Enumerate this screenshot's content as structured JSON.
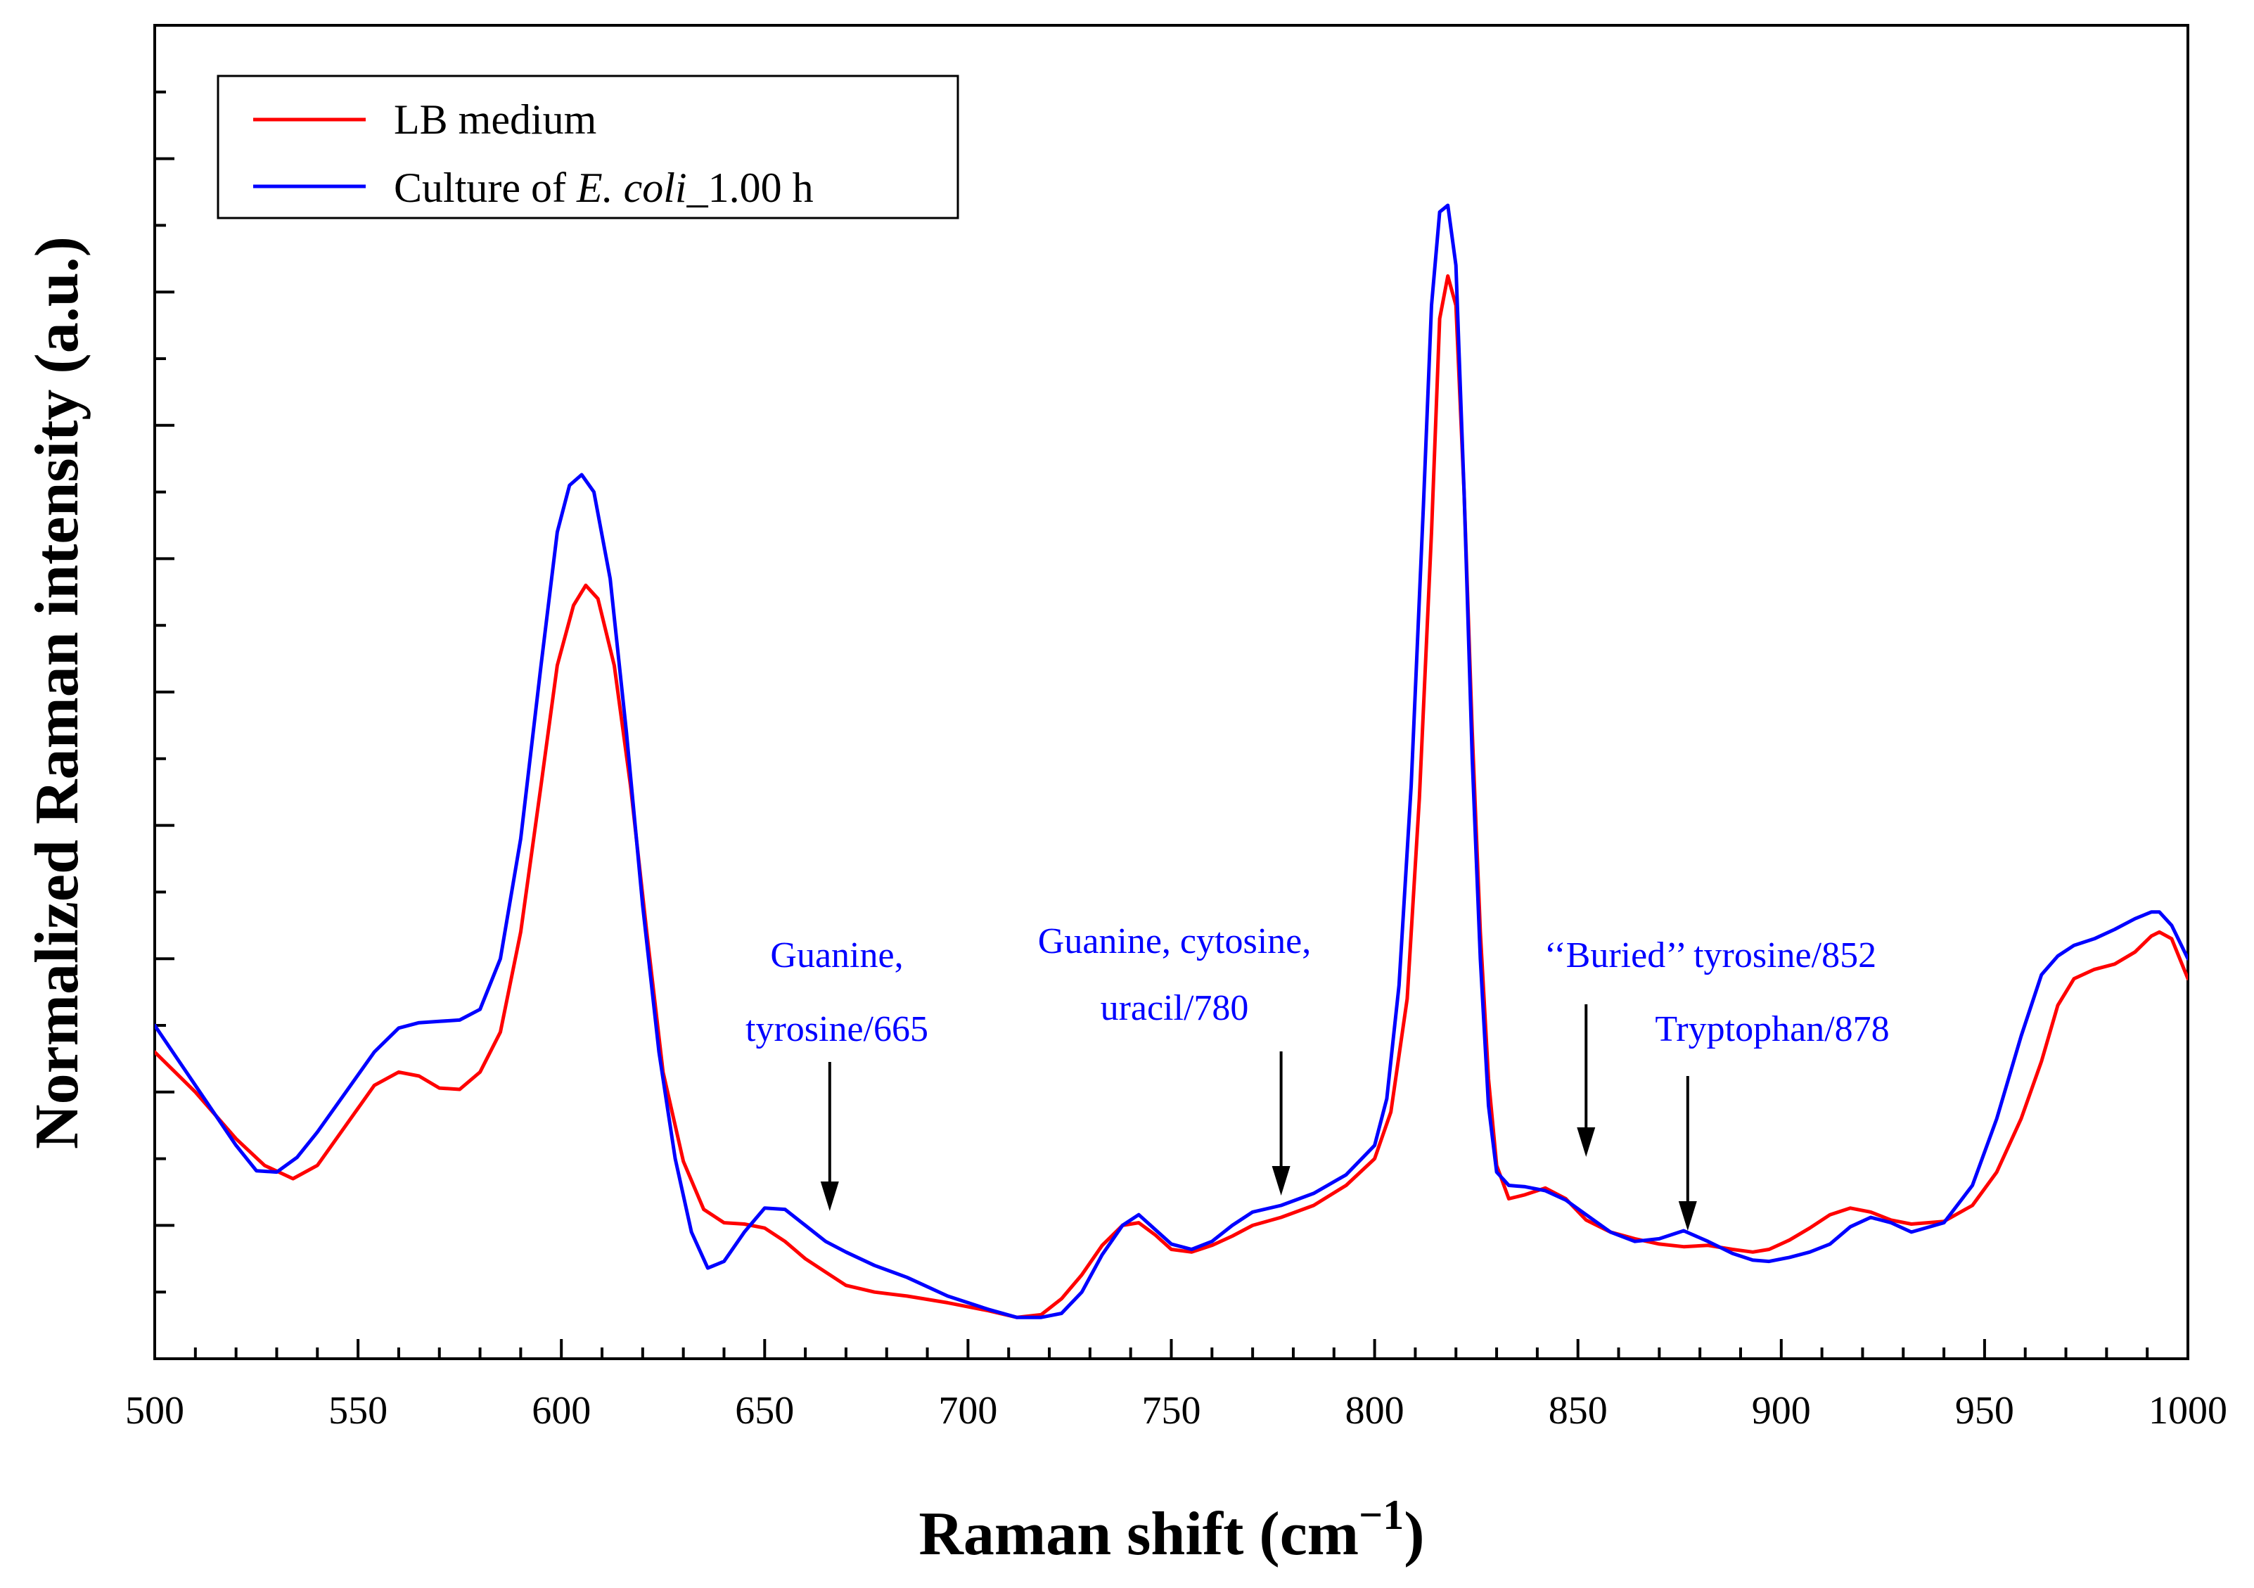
{
  "chart_data": {
    "type": "line",
    "xlabel": "Raman shift (cm",
    "xlabel_sup": "−1",
    "xlabel_tail": ")",
    "ylabel": "Normalized Raman intensity (a.u.)",
    "xlim": [
      500,
      1000
    ],
    "ylim": [
      0,
      1000
    ],
    "xticks": [
      500,
      550,
      600,
      650,
      700,
      750,
      800,
      850,
      900,
      950,
      1000
    ],
    "yticks_labeled": false,
    "legend_position": "top-left",
    "colors": {
      "lb": "#ff0000",
      "culture": "#0000ff",
      "annotation": "#0000ff"
    },
    "series": [
      {
        "key": "lb",
        "name": "LB medium",
        "x": [
          500,
          510,
          520,
          527,
          534,
          540,
          547,
          554,
          560,
          565,
          570,
          575,
          580,
          585,
          590,
          595,
          599,
          603,
          606,
          609,
          613,
          617,
          621,
          625,
          630,
          635,
          640,
          645,
          650,
          655,
          660,
          665,
          670,
          677,
          685,
          695,
          705,
          712,
          718,
          723,
          728,
          733,
          738,
          742,
          746,
          750,
          755,
          760,
          765,
          770,
          777,
          785,
          793,
          800,
          804,
          808,
          811,
          814,
          816,
          818,
          820,
          822,
          824,
          826,
          828,
          830,
          833,
          837,
          842,
          847,
          852,
          858,
          864,
          870,
          876,
          882,
          888,
          893,
          897,
          902,
          907,
          912,
          917,
          922,
          927,
          932,
          940,
          947,
          953,
          959,
          964,
          968,
          972,
          977,
          982,
          987,
          991,
          993,
          996,
          1000
        ],
        "y": [
          230,
          200,
          165,
          145,
          135,
          145,
          175,
          205,
          215,
          212,
          203,
          202,
          215,
          245,
          320,
          430,
          520,
          565,
          580,
          570,
          520,
          430,
          320,
          215,
          148,
          112,
          102,
          101,
          98,
          88,
          75,
          65,
          55,
          50,
          47,
          42,
          36,
          31,
          33,
          45,
          63,
          85,
          100,
          102,
          93,
          82,
          80,
          85,
          92,
          100,
          106,
          115,
          130,
          150,
          185,
          270,
          420,
          620,
          780,
          812,
          790,
          650,
          470,
          320,
          210,
          145,
          120,
          123,
          128,
          120,
          104,
          95,
          90,
          86,
          84,
          85,
          82,
          80,
          82,
          89,
          98,
          108,
          113,
          110,
          104,
          101,
          103,
          115,
          140,
          180,
          223,
          265,
          285,
          292,
          296,
          305,
          317,
          320,
          315,
          285
        ]
      },
      {
        "key": "culture",
        "name": "Culture of E. coli_1.00 h",
        "x": [
          500,
          510,
          520,
          525,
          530,
          535,
          540,
          547,
          554,
          560,
          565,
          570,
          575,
          580,
          585,
          590,
          595,
          599,
          602,
          605,
          608,
          612,
          616,
          620,
          624,
          628,
          632,
          636,
          640,
          645,
          650,
          655,
          660,
          665,
          670,
          677,
          685,
          695,
          705,
          712,
          718,
          723,
          728,
          733,
          738,
          742,
          746,
          750,
          755,
          760,
          765,
          770,
          777,
          785,
          793,
          800,
          803,
          806,
          809,
          812,
          814,
          816,
          818,
          820,
          822,
          824,
          826,
          828,
          830,
          833,
          837,
          842,
          847,
          852,
          858,
          864,
          870,
          876,
          882,
          888,
          893,
          897,
          902,
          907,
          912,
          917,
          922,
          927,
          932,
          940,
          947,
          953,
          959,
          964,
          968,
          972,
          977,
          982,
          987,
          991,
          993,
          996,
          1000
        ],
        "y": [
          250,
          205,
          160,
          141,
          140,
          151,
          170,
          200,
          230,
          248,
          252,
          253,
          254,
          262,
          300,
          390,
          520,
          620,
          655,
          663,
          650,
          585,
          470,
          340,
          230,
          150,
          95,
          68,
          73,
          95,
          113,
          112,
          100,
          88,
          80,
          70,
          61,
          47,
          37,
          31,
          31,
          34,
          50,
          78,
          100,
          108,
          97,
          86,
          82,
          88,
          100,
          110,
          115,
          124,
          138,
          160,
          195,
          280,
          430,
          640,
          790,
          860,
          865,
          820,
          650,
          450,
          300,
          190,
          140,
          130,
          129,
          126,
          119,
          108,
          95,
          88,
          90,
          96,
          88,
          79,
          74,
          73,
          76,
          80,
          86,
          99,
          106,
          102,
          95,
          102,
          130,
          180,
          242,
          288,
          302,
          310,
          315,
          322,
          330,
          335,
          335,
          325,
          300
        ]
      }
    ],
    "annotations": [
      {
        "lines": [
          "Guanine,",
          "tyrosine/665"
        ],
        "x": 666
      },
      {
        "lines": [
          "Guanine, cytosine,",
          "uracil/780"
        ],
        "x": 777
      },
      {
        "lines": [
          "‘‘Buried’’ tyrosine/852"
        ],
        "x": 852
      },
      {
        "lines": [
          "Tryptophan/878"
        ],
        "x": 877
      }
    ]
  }
}
